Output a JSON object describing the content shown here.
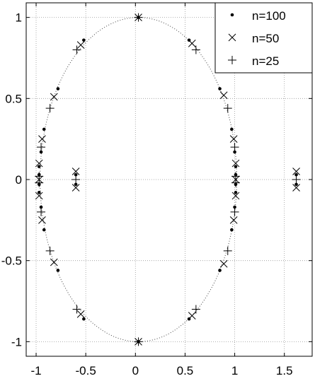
{
  "chart_data": {
    "type": "scatter",
    "title": "",
    "xlabel": "",
    "ylabel": "",
    "xlim": [
      -1.1,
      1.78
    ],
    "ylim": [
      -1.09,
      1.09
    ],
    "xticks": [
      -1,
      -0.5,
      0,
      0.5,
      1,
      1.5
    ],
    "xtick_labels": [
      "-1",
      "-0.5",
      "0",
      "0.5",
      "1",
      "1.5"
    ],
    "yticks": [
      -1,
      -0.5,
      0,
      0.5,
      1
    ],
    "ytick_labels": [
      "-1",
      "-0.5",
      "0",
      "0.5",
      "1"
    ],
    "grid": true,
    "legend_position": "top-right",
    "reference_curve": {
      "shape": "ellipse",
      "center": [
        0.03,
        0
      ],
      "rx": 0.99,
      "ry": 1.0,
      "style": "dotted"
    },
    "series": [
      {
        "name": "n=100",
        "marker": "dot",
        "points": [
          [
            0.03,
            1.0
          ],
          [
            0.03,
            -1.0
          ],
          [
            -0.52,
            0.86
          ],
          [
            -0.52,
            -0.86
          ],
          [
            0.54,
            0.86
          ],
          [
            0.54,
            -0.86
          ],
          [
            -0.78,
            0.56
          ],
          [
            -0.78,
            -0.56
          ],
          [
            0.85,
            0.56
          ],
          [
            0.85,
            -0.56
          ],
          [
            -0.92,
            0.31
          ],
          [
            -0.92,
            -0.31
          ],
          [
            0.97,
            0.31
          ],
          [
            0.97,
            -0.31
          ],
          [
            -0.95,
            0.17
          ],
          [
            -0.95,
            -0.17
          ],
          [
            1.0,
            0.17
          ],
          [
            1.0,
            -0.17
          ],
          [
            -0.97,
            0.08
          ],
          [
            -0.97,
            0.03
          ],
          [
            -0.97,
            -0.03
          ],
          [
            -0.97,
            -0.08
          ],
          [
            1.01,
            0.08
          ],
          [
            1.01,
            0.03
          ],
          [
            1.01,
            -0.03
          ],
          [
            1.01,
            -0.08
          ],
          [
            -0.6,
            0.03
          ],
          [
            -0.6,
            -0.03
          ],
          [
            1.62,
            0.03
          ],
          [
            1.62,
            -0.03
          ]
        ]
      },
      {
        "name": "n=50",
        "marker": "x",
        "points": [
          [
            0.03,
            1.0
          ],
          [
            0.03,
            -1.0
          ],
          [
            -0.55,
            0.83
          ],
          [
            -0.55,
            -0.83
          ],
          [
            0.57,
            0.84
          ],
          [
            0.57,
            -0.84
          ],
          [
            -0.82,
            0.51
          ],
          [
            -0.82,
            -0.51
          ],
          [
            0.89,
            0.52
          ],
          [
            0.89,
            -0.52
          ],
          [
            -0.94,
            0.25
          ],
          [
            -0.94,
            -0.25
          ],
          [
            0.99,
            0.25
          ],
          [
            0.99,
            -0.25
          ],
          [
            -0.97,
            0.1
          ],
          [
            -0.97,
            0.0
          ],
          [
            -0.97,
            -0.1
          ],
          [
            1.01,
            0.1
          ],
          [
            1.01,
            0.0
          ],
          [
            1.01,
            -0.1
          ],
          [
            -0.6,
            0.05
          ],
          [
            -0.6,
            -0.05
          ],
          [
            1.62,
            0.05
          ],
          [
            1.62,
            -0.05
          ]
        ]
      },
      {
        "name": "n=25",
        "marker": "plus",
        "points": [
          [
            0.03,
            1.0
          ],
          [
            0.03,
            -1.0
          ],
          [
            -0.59,
            0.8
          ],
          [
            -0.59,
            -0.8
          ],
          [
            0.61,
            0.8
          ],
          [
            0.61,
            -0.8
          ],
          [
            -0.86,
            0.44
          ],
          [
            -0.86,
            -0.44
          ],
          [
            0.93,
            0.44
          ],
          [
            0.93,
            -0.44
          ],
          [
            -0.95,
            0.2
          ],
          [
            -0.95,
            -0.2
          ],
          [
            1.0,
            0.2
          ],
          [
            1.0,
            -0.2
          ],
          [
            -0.97,
            0.02
          ],
          [
            -0.97,
            -0.02
          ],
          [
            1.01,
            0.02
          ],
          [
            1.01,
            -0.02
          ],
          [
            -0.6,
            0.0
          ],
          [
            1.62,
            0.0
          ]
        ]
      }
    ]
  }
}
